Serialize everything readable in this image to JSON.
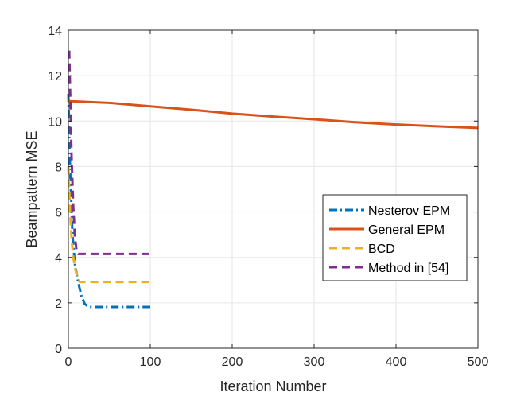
{
  "chart_data": {
    "type": "line",
    "title": "",
    "xlabel": "Iteration Number",
    "ylabel": "Beampattern MSE",
    "xlim": [
      0,
      500
    ],
    "ylim": [
      0,
      14
    ],
    "xticks": [
      "0",
      "100",
      "200",
      "300",
      "400",
      "500"
    ],
    "yticks": [
      "0",
      "2",
      "4",
      "6",
      "8",
      "10",
      "12",
      "14"
    ],
    "grid": true,
    "legend_position": "right-middle",
    "series": [
      {
        "name": "Nesterov EPM",
        "color": "#0072BD",
        "dash": "dash-dot",
        "x": [
          0,
          2,
          5,
          8,
          12,
          16,
          20,
          25,
          30,
          50,
          100
        ],
        "y": [
          11.2,
          8.0,
          5.0,
          3.7,
          2.9,
          2.3,
          1.95,
          1.82,
          1.82,
          1.82,
          1.82
        ]
      },
      {
        "name": "General EPM",
        "color": "#D95319",
        "dash": "solid",
        "x": [
          0,
          50,
          100,
          150,
          200,
          250,
          300,
          350,
          400,
          450,
          500
        ],
        "y": [
          10.88,
          10.8,
          10.65,
          10.5,
          10.33,
          10.2,
          10.08,
          9.95,
          9.85,
          9.77,
          9.7
        ]
      },
      {
        "name": "BCD",
        "color": "#EDB120",
        "dash": "dashed",
        "x": [
          0,
          2,
          4,
          6,
          9,
          12,
          14,
          20,
          50,
          100
        ],
        "y": [
          8.0,
          6.0,
          4.8,
          4.0,
          3.4,
          3.0,
          2.92,
          2.92,
          2.92,
          2.92
        ]
      },
      {
        "name": "Method in [54]",
        "color": "#7E2F8E",
        "dash": "dashed",
        "x": [
          1,
          2,
          4,
          6,
          8,
          10,
          12,
          20,
          50,
          100
        ],
        "y": [
          13.1,
          11.5,
          8.3,
          6.2,
          4.9,
          4.3,
          4.15,
          4.15,
          4.15,
          4.15
        ]
      }
    ]
  }
}
